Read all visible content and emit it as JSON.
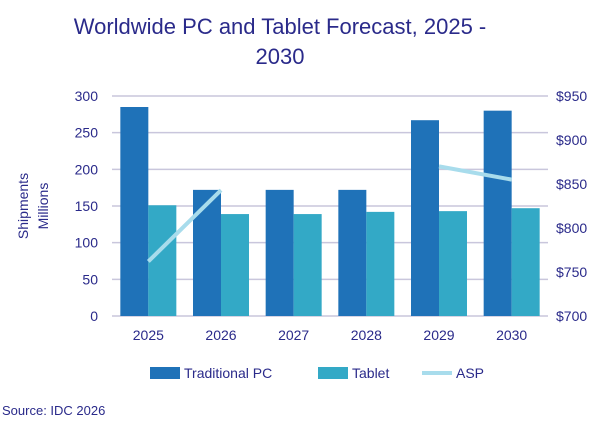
{
  "chart_data": {
    "type": "bar",
    "title": "Worldwide PC and Tablet Forecast, 2025 - 2030",
    "categories": [
      "2025",
      "2026",
      "2027",
      "2028",
      "2029",
      "2030"
    ],
    "ylabel": "Shipments Millions",
    "ylabel_lines": [
      "Shipments",
      "Millions"
    ],
    "ylim": [
      0,
      300
    ],
    "yticks": [
      0,
      50,
      100,
      150,
      200,
      250,
      300
    ],
    "y2lim": [
      700,
      950
    ],
    "y2ticks": [
      "$700",
      "$750",
      "$800",
      "$850",
      "$900",
      "$950"
    ],
    "grid": true,
    "legend": "bottom",
    "series": [
      {
        "name": "Traditional PC",
        "type": "bar",
        "color": "#1f72b8",
        "values": [
          285,
          172,
          172,
          172,
          267,
          280
        ]
      },
      {
        "name": "Tablet",
        "type": "bar",
        "color": "#33a9c6",
        "values": [
          151,
          139,
          139,
          142,
          143,
          147
        ]
      },
      {
        "name": "ASP",
        "type": "line",
        "axis": "right",
        "color": "#a8dcec",
        "values": [
          762,
          843,
          null,
          null,
          870,
          855
        ]
      }
    ]
  },
  "source": "Source: IDC 2026"
}
